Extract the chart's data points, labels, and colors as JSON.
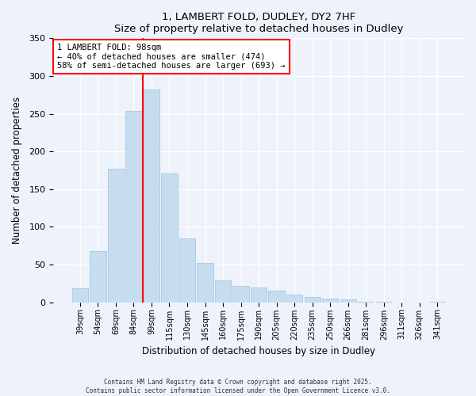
{
  "title": "1, LAMBERT FOLD, DUDLEY, DY2 7HF",
  "subtitle": "Size of property relative to detached houses in Dudley",
  "xlabel": "Distribution of detached houses by size in Dudley",
  "ylabel": "Number of detached properties",
  "bar_labels": [
    "39sqm",
    "54sqm",
    "69sqm",
    "84sqm",
    "99sqm",
    "115sqm",
    "130sqm",
    "145sqm",
    "160sqm",
    "175sqm",
    "190sqm",
    "205sqm",
    "220sqm",
    "235sqm",
    "250sqm",
    "266sqm",
    "281sqm",
    "296sqm",
    "311sqm",
    "326sqm",
    "341sqm"
  ],
  "bar_values": [
    19,
    68,
    177,
    254,
    282,
    171,
    85,
    52,
    29,
    22,
    20,
    15,
    10,
    7,
    5,
    4,
    1,
    1,
    0,
    0,
    1
  ],
  "bar_color": "#c5ddef",
  "bar_edge_color": "#a0c0dc",
  "vline_color": "red",
  "annotation_title": "1 LAMBERT FOLD: 98sqm",
  "annotation_line1": "← 40% of detached houses are smaller (474)",
  "annotation_line2": "58% of semi-detached houses are larger (693) →",
  "box_facecolor": "white",
  "box_edgecolor": "red",
  "ylim": [
    0,
    350
  ],
  "yticks": [
    0,
    50,
    100,
    150,
    200,
    250,
    300,
    350
  ],
  "footer1": "Contains HM Land Registry data © Crown copyright and database right 2025.",
  "footer2": "Contains public sector information licensed under the Open Government Licence v3.0.",
  "bg_color": "#eef2fb"
}
